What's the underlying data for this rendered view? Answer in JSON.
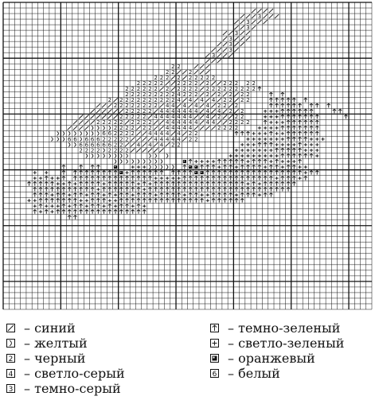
{
  "chart_data": {
    "type": "table",
    "cols": 64,
    "rows": 55,
    "symbol_colors": {
      "/": "#1a4fbf",
      ")": "#e8c31a",
      "2": "#111111",
      "4": "#c8c8c8",
      "3": "#555555",
      "^": "#1e5c2a",
      "+": "#7fc96a",
      "#": "#f08a1c",
      "6": "#ffffff"
    },
    "grid": [
      "                                                                ",
      "                                           ////                 ",
      "                                         ///3///                ",
      "                                        //3///                  ",
      "                                        //3/                    ",
      "                                      //3//                     ",
      "                                      /3///                     ",
      "                                     //3//                      ",
      "                                    ///3/                       ",
      "                                   /3///                        ",
      "                                   ///                          ",
      "                             22  ///                            ",
      "                            22//2///                            ",
      "                          222/2/22222                           ",
      "                       22222//2222/2//222 22                     ",
      "                     222222/2/2222/222222222^                    ",
      "                     2222222224222/2/2/2/22   ^ ^               ",
      "                  2/22222222224/4/4/4/22/22   ^^^^^ ^            ",
      "                ///22222222/44/4/4/4/22/2     ^^^^^^ ^^ ^        ",
      "               //////22222/4444444/4/4/2/2   +++^^^^^^   ^^      ",
      "             ///////22222/4444444//4/2//22   +++^^^^^^^    ^     ",
      "            ////22222/2222//444444/44//2222  ^+++^^^^^^          ",
      "           ////))))2222/22//44444////2222   ++++^^^^^^^          ",
      "         ))))))))662222//4444/4/22      ^^^+++^++^^^^^^          ",
      "        )))66)66622222////44444/22        +++++++^^^^+++         ",
      "           ))66666622//4/4/4/22          +++^^^++++^+++          ",
      "             2222)2222//////            +++++++^^^^^+++          ",
      "              ))))))))   )) )          +++++++++^^^^^^+          ",
      "                   )))))))))   #^++++^^^^^+^^^+^+++^             ",
      "          ^  ^ ^^  #  +++))))) ^##^^^+^^+^^^^+^^+^^++            ",
      "     + +  ^ ^^^^^^^^#+^^^^^^ ^^^^##^^^^^^^^^^^^^^^^^+^^           ",
      "     ++^++^ ^^^^^^^^^^^^^^+++++^^^^^^^^^^^^^^^^+^^^+^            ",
      "    ^^^^^++^+^^^^+^^^^^+^+^^^^^^^^^^^^^^^^+^+^^^^^^              ",
      "     ^^^^^^^^^^^+^^^^^^^+^^^^^^^^^^^^^^^^^^^^^^^^^                ",
      "     ^^^+^^+^^+^^+^+^^+^^^+^^^^+^^++^^^^+^^^+^^                  ",
      "    ++^^^^^^^++^^^++^^^^^^^^^^^^^^^+^^^^^^                       ",
      "     +^+++^+^^+^^+^+^^+^+                                        ",
      "     ^+^+^^^^^^^^^^^^^^^^                                        ",
      "           ^^                                                    ",
      "                                                                 ",
      "                                                                 ",
      "                                                                 ",
      "                                                                 ",
      "                                                                 ",
      "                                                                 ",
      "                                                                 ",
      "                                                                 ",
      "                                                                 ",
      "                                                                 ",
      "                                                                 ",
      "                                                                 ",
      "                                                                 ",
      "                                                                 ",
      "                                                                 ",
      "                                                                 "
    ]
  },
  "legend": {
    "items": [
      {
        "symbol": "/",
        "label": "– синий"
      },
      {
        "symbol": ")",
        "label": "– желтый"
      },
      {
        "symbol": "2",
        "label": "– черный"
      },
      {
        "symbol": "4",
        "label": "– светло-серый"
      },
      {
        "symbol": "3",
        "label": "– темно-серый"
      },
      {
        "symbol": "^",
        "label": "– темно-зеленый"
      },
      {
        "symbol": "+",
        "label": "– светло-зеленый"
      },
      {
        "symbol": "#",
        "label": "– оранжевый"
      },
      {
        "symbol": "6",
        "label": "– белый"
      }
    ]
  }
}
